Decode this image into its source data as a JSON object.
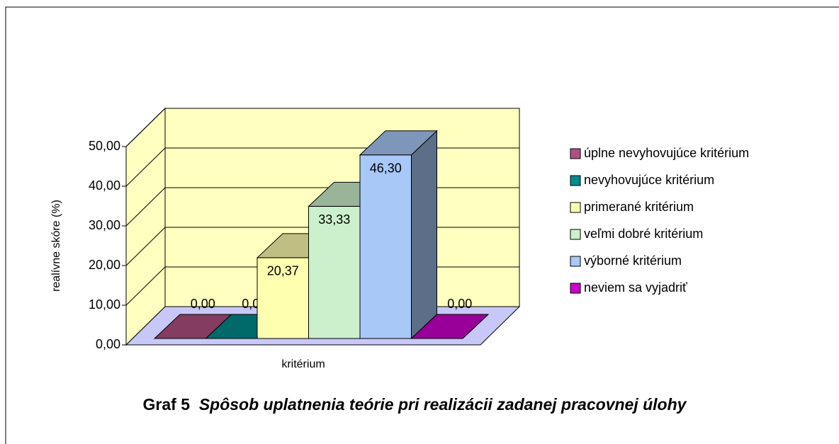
{
  "chart_data": {
    "type": "bar3d",
    "caption_label": "Graf 5",
    "title": "Spôsob uplatnenia teórie pri realizácii zadanej pracovnej úlohy",
    "ylabel": "realívne skóre (%)",
    "categories": [
      "kritérium"
    ],
    "series": [
      {
        "name": "úplne nevyhovujúce kritérium",
        "color": "#b05080",
        "values": [
          0
        ],
        "value_labels": [
          "0,00"
        ]
      },
      {
        "name": "nevyhovujúce kritérium",
        "color": "#008c8c",
        "values": [
          0
        ],
        "value_labels": [
          "0,00"
        ]
      },
      {
        "name": "primerané kritérium",
        "color": "#ffffb0",
        "values": [
          20.37
        ],
        "value_labels": [
          "20,37"
        ]
      },
      {
        "name": "veľmi dobré kritérium",
        "color": "#ccf0cc",
        "values": [
          33.33
        ],
        "value_labels": [
          "33,33"
        ]
      },
      {
        "name": "výborné kritérium",
        "color": "#a8c8f8",
        "values": [
          46.3
        ],
        "value_labels": [
          "46,30"
        ]
      },
      {
        "name": "neviem sa vyjadriť",
        "color": "#cc00cc",
        "values": [
          0
        ],
        "value_labels": [
          "0,00"
        ]
      }
    ],
    "ylim": [
      0,
      50
    ],
    "yticks": [
      {
        "value": 0,
        "label": "0,00"
      },
      {
        "value": 10,
        "label": "10,00"
      },
      {
        "value": 20,
        "label": "20,00"
      },
      {
        "value": 30,
        "label": "30,00"
      },
      {
        "value": 40,
        "label": "40,00"
      },
      {
        "value": 50,
        "label": "50,00"
      }
    ],
    "grid": true
  }
}
